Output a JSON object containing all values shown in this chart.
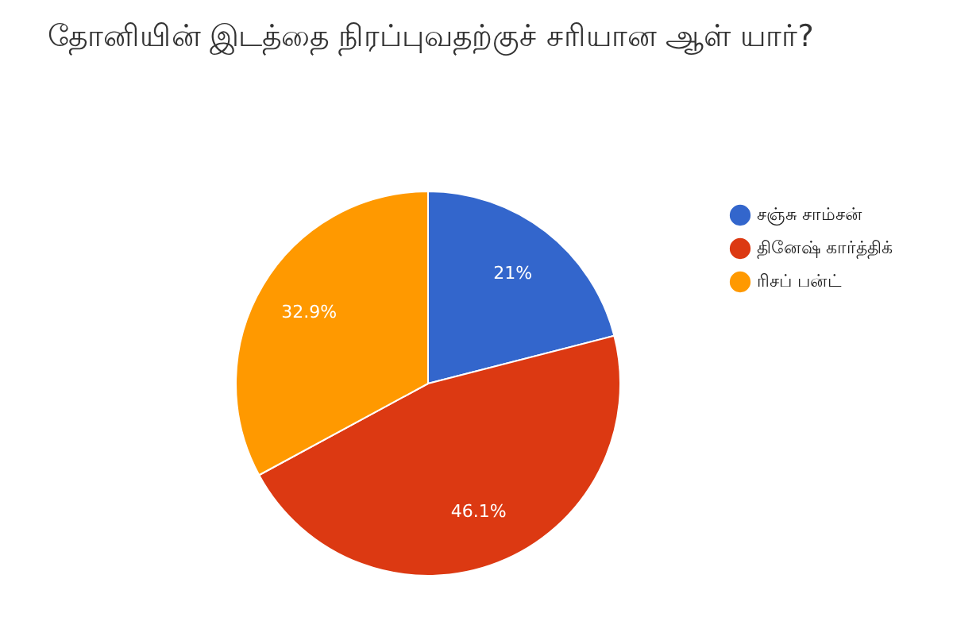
{
  "chart_data": {
    "type": "pie",
    "title": "தோனியின் இடத்தை நிரப்புவதற்குச் சரியான ஆள் யார்?",
    "categories": [
      "சஞ்சு சாம்சன்",
      "தினேஷ் கார்த்திக்",
      "ரிசப் பன்ட்"
    ],
    "values": [
      21,
      46.1,
      32.9
    ],
    "colors": [
      "#3366cc",
      "#dc3912",
      "#ff9900"
    ],
    "value_labels": [
      "21%",
      "46.1%",
      "32.9%"
    ],
    "legend": "right"
  }
}
